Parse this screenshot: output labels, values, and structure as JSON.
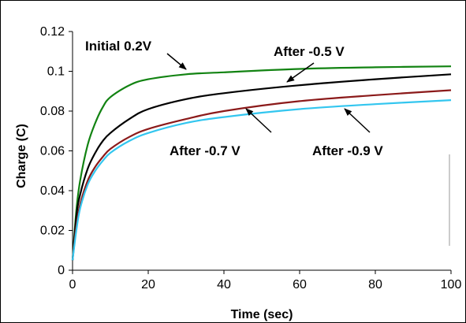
{
  "chart_data": {
    "type": "line",
    "title": "",
    "xlabel": "Time (sec)",
    "ylabel": "Charge (C)",
    "xlim": [
      0,
      100
    ],
    "ylim": [
      0,
      0.12
    ],
    "xticks": [
      "0",
      "20",
      "40",
      "60",
      "80",
      "100"
    ],
    "yticks": [
      "0",
      "0.02",
      "0.04",
      "0.06",
      "0.08",
      "0.1",
      "0.12"
    ],
    "grid": false,
    "legend": "none",
    "series": [
      {
        "color": "#128312",
        "x": [
          0,
          1,
          2,
          4,
          6,
          8,
          10,
          15,
          20,
          30,
          40,
          60,
          80,
          100
        ],
        "y": [
          0.005,
          0.03,
          0.045,
          0.063,
          0.074,
          0.082,
          0.087,
          0.093,
          0.096,
          0.0985,
          0.0995,
          0.1012,
          0.102,
          0.1025
        ]
      },
      {
        "color": "#000000",
        "x": [
          0,
          1,
          2,
          4,
          6,
          8,
          10,
          15,
          20,
          30,
          40,
          60,
          80,
          100
        ],
        "y": [
          0.005,
          0.027,
          0.038,
          0.051,
          0.059,
          0.065,
          0.069,
          0.076,
          0.081,
          0.086,
          0.089,
          0.093,
          0.096,
          0.0985
        ]
      },
      {
        "color": "#8B1A1A",
        "x": [
          0,
          1,
          2,
          4,
          6,
          8,
          10,
          15,
          20,
          30,
          40,
          60,
          80,
          100
        ],
        "y": [
          0.005,
          0.022,
          0.033,
          0.045,
          0.052,
          0.057,
          0.061,
          0.067,
          0.071,
          0.076,
          0.08,
          0.085,
          0.088,
          0.0905
        ]
      },
      {
        "color": "#33C6EF",
        "x": [
          0,
          1,
          2,
          4,
          6,
          8,
          10,
          15,
          20,
          30,
          40,
          60,
          80,
          100
        ],
        "y": [
          0.005,
          0.02,
          0.031,
          0.043,
          0.05,
          0.055,
          0.059,
          0.065,
          0.069,
          0.074,
          0.077,
          0.081,
          0.0835,
          0.0855
        ]
      }
    ],
    "annotations": [
      {
        "text": "Initial 0.2V"
      },
      {
        "text": "After -0.5 V"
      },
      {
        "text": "After -0.7 V"
      },
      {
        "text": "After -0.9 V"
      }
    ]
  }
}
